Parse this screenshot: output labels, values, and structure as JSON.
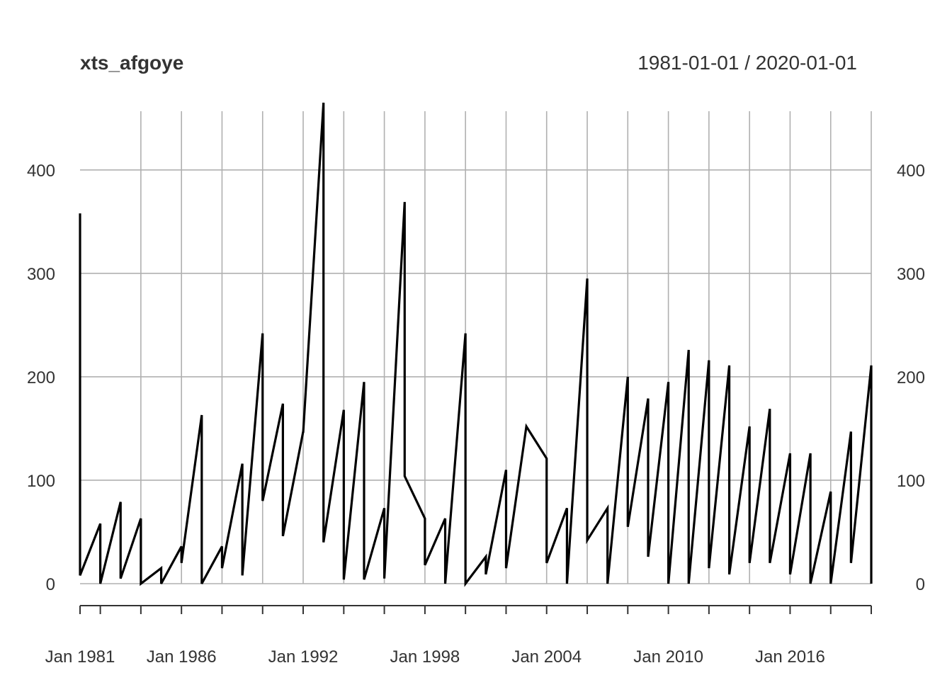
{
  "chart_data": {
    "type": "line",
    "title": "xts_afgoye",
    "date_range": "1981-01-01 / 2020-01-01",
    "xlabel": "",
    "ylabel": "",
    "ylim": [
      0,
      465
    ],
    "xlim": [
      "1981-01-01",
      "2020-01-01"
    ],
    "y_ticks": [
      0,
      100,
      200,
      300,
      400
    ],
    "x_tick_labels": [
      {
        "date": "1981-01-01",
        "label": "Jan 1981"
      },
      {
        "date": "1986-01-01",
        "label": "Jan 1986"
      },
      {
        "date": "1992-01-01",
        "label": "Jan 1992"
      },
      {
        "date": "1998-01-01",
        "label": "Jan 1998"
      },
      {
        "date": "2004-01-01",
        "label": "Jan 2004"
      },
      {
        "date": "2010-01-01",
        "label": "Jan 2010"
      },
      {
        "date": "2016-01-01",
        "label": "Jan 2016"
      }
    ],
    "x_grid_dates": [
      "1984-01-01",
      "1986-01-01",
      "1988-01-01",
      "1990-01-01",
      "1992-01-01",
      "1994-01-01",
      "1996-01-01",
      "1998-01-01",
      "2000-01-01",
      "2002-01-01",
      "2004-01-01",
      "2006-01-01",
      "2008-01-01",
      "2010-01-01",
      "2012-01-01",
      "2014-01-01",
      "2016-01-01",
      "2018-01-01",
      "2020-01-01"
    ],
    "x_axis_tick_dates": [
      "1981-01-01",
      "1982-01-01",
      "1984-01-01",
      "1986-01-01",
      "1988-01-01",
      "1990-01-01",
      "1992-01-01",
      "1994-01-01",
      "1996-01-01",
      "1998-01-01",
      "2000-01-01",
      "2002-01-01",
      "2004-01-01",
      "2006-01-01",
      "2008-01-01",
      "2010-01-01",
      "2012-01-01",
      "2014-01-01",
      "2016-01-01",
      "2018-01-01",
      "2020-01-01"
    ],
    "grid": true,
    "series": [
      {
        "x": [
          "1981-01-01",
          "1981-01-01",
          "1982-01-01",
          "1982-01-01",
          "1983-01-01",
          "1983-01-01",
          "1984-01-01",
          "1984-01-01",
          "1985-01-01",
          "1985-01-01",
          "1986-01-01",
          "1986-01-01",
          "1987-01-01",
          "1987-01-01",
          "1988-01-01",
          "1988-01-01",
          "1989-01-01",
          "1989-01-01",
          "1990-01-01",
          "1990-01-01",
          "1991-01-01",
          "1991-01-01",
          "1992-01-01",
          "1992-01-01",
          "1993-01-01",
          "1993-01-01",
          "1994-01-01",
          "1994-01-01",
          "1995-01-01",
          "1995-01-01",
          "1996-01-01",
          "1996-01-01",
          "1997-01-01",
          "1997-01-01",
          "1998-01-01",
          "1998-01-01",
          "1999-01-01",
          "1999-01-01",
          "2000-01-01",
          "2000-01-01",
          "2001-01-01",
          "2001-01-01",
          "2002-01-01",
          "2002-01-01",
          "2003-01-01",
          "2003-01-01",
          "2004-01-01",
          "2004-01-01",
          "2005-01-01",
          "2005-01-01",
          "2006-01-01",
          "2006-01-01",
          "2007-01-01",
          "2007-01-01",
          "2008-01-01",
          "2008-01-01",
          "2009-01-01",
          "2009-01-01",
          "2010-01-01",
          "2010-01-01",
          "2011-01-01",
          "2011-01-01",
          "2012-01-01",
          "2012-01-01",
          "2013-01-01",
          "2013-01-01",
          "2014-01-01",
          "2014-01-01",
          "2015-01-01",
          "2015-01-01",
          "2016-01-01",
          "2016-01-01",
          "2017-01-01",
          "2017-01-01",
          "2018-01-01",
          "2018-01-01",
          "2019-01-01",
          "2019-01-01",
          "2020-01-01",
          "2020-01-01"
        ],
        "values": [
          358,
          8,
          58,
          0,
          79,
          5,
          63,
          0,
          15,
          0,
          36,
          20,
          163,
          0,
          36,
          15,
          116,
          8,
          242,
          80,
          174,
          46,
          147,
          146,
          465,
          40,
          168,
          4,
          195,
          4,
          73,
          5,
          369,
          104,
          63,
          18,
          63,
          0,
          242,
          0,
          26,
          9,
          110,
          15,
          152,
          152,
          121,
          20,
          73,
          0,
          295,
          42,
          73,
          0,
          200,
          55,
          179,
          26,
          195,
          0,
          226,
          0,
          216,
          15,
          211,
          9,
          152,
          20,
          169,
          20,
          126,
          9,
          126,
          0,
          89,
          0,
          147,
          20,
          211,
          0
        ]
      }
    ]
  }
}
